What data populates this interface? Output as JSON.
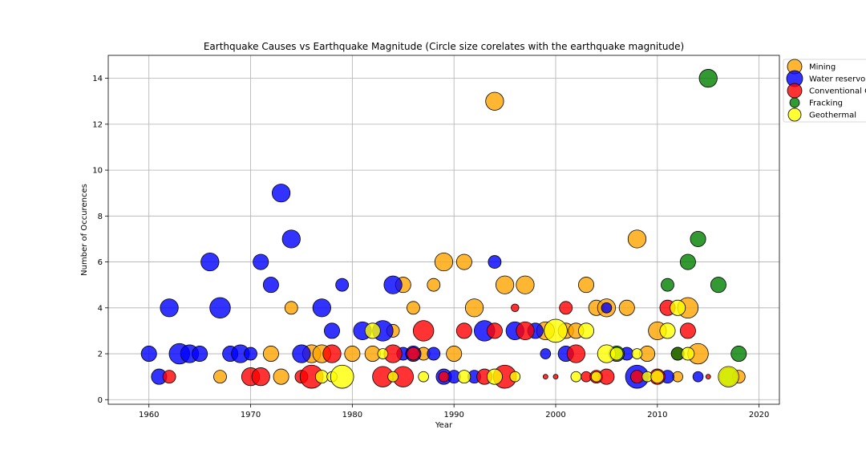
{
  "chart_data": {
    "type": "scatter",
    "title": "Earthquake Causes vs Earthquake Magnitude (Circle size corelates with the earthquake magnitude)",
    "xlabel": "Year",
    "ylabel": "Number of Occurences",
    "xlim": [
      1956,
      2022
    ],
    "ylim": [
      -0.2,
      15
    ],
    "xticks": [
      1960,
      1970,
      1980,
      1990,
      2000,
      2010,
      2020
    ],
    "yticks": [
      0,
      2,
      4,
      6,
      8,
      10,
      12,
      14
    ],
    "grid": true,
    "legend_position": "outside-right-top",
    "series": [
      {
        "name": "Mining",
        "color": "#FFA500",
        "points": [
          [
            1967,
            1,
            5
          ],
          [
            1972,
            2,
            5.5
          ],
          [
            1973,
            1,
            5.5
          ],
          [
            1974,
            4,
            5
          ],
          [
            1976,
            2,
            6
          ],
          [
            1977,
            2,
            6
          ],
          [
            1980,
            2,
            5.5
          ],
          [
            1982,
            2,
            5.5
          ],
          [
            1984,
            3,
            5
          ],
          [
            1985,
            5,
            5.5
          ],
          [
            1986,
            4,
            5
          ],
          [
            1987,
            2,
            5
          ],
          [
            1988,
            5,
            5
          ],
          [
            1989,
            6,
            6
          ],
          [
            1990,
            2,
            5.5
          ],
          [
            1991,
            6,
            5.5
          ],
          [
            1992,
            4,
            6
          ],
          [
            1994,
            13,
            6
          ],
          [
            1995,
            5,
            6
          ],
          [
            1997,
            5,
            6
          ],
          [
            1999,
            3,
            6
          ],
          [
            2001,
            3,
            5.5
          ],
          [
            2002,
            3,
            5.5
          ],
          [
            2003,
            5,
            5.5
          ],
          [
            2004,
            4,
            5.5
          ],
          [
            2005,
            4,
            6
          ],
          [
            2007,
            4,
            5.5
          ],
          [
            2008,
            7,
            6
          ],
          [
            2009,
            2,
            5.5
          ],
          [
            2010,
            3,
            6
          ],
          [
            2012,
            1,
            4.5
          ],
          [
            2013,
            4,
            6.5
          ],
          [
            2014,
            2,
            6.5
          ],
          [
            2018,
            1,
            5
          ]
        ]
      },
      {
        "name": "Water reservoir",
        "color": "#0000FF",
        "points": [
          [
            1960,
            2,
            5.5
          ],
          [
            1961,
            1,
            5.5
          ],
          [
            1962,
            4,
            6
          ],
          [
            1963,
            2,
            6.5
          ],
          [
            1964,
            2,
            6
          ],
          [
            1965,
            2,
            5.5
          ],
          [
            1966,
            6,
            6
          ],
          [
            1967,
            4,
            6.5
          ],
          [
            1968,
            2,
            5.5
          ],
          [
            1969,
            2,
            6
          ],
          [
            1970,
            2,
            5
          ],
          [
            1971,
            6,
            5.5
          ],
          [
            1972,
            5,
            5.5
          ],
          [
            1973,
            9,
            6
          ],
          [
            1974,
            7,
            6
          ],
          [
            1975,
            2,
            6
          ],
          [
            1977,
            4,
            6
          ],
          [
            1978,
            3,
            5.5
          ],
          [
            1979,
            5,
            5
          ],
          [
            1981,
            3,
            6
          ],
          [
            1983,
            3,
            6.5
          ],
          [
            1984,
            5,
            6
          ],
          [
            1985,
            2,
            5
          ],
          [
            1986,
            2,
            5.5
          ],
          [
            1988,
            2,
            5
          ],
          [
            1989,
            1,
            5.5
          ],
          [
            1990,
            1,
            5
          ],
          [
            1992,
            1,
            5
          ],
          [
            1993,
            3,
            6.5
          ],
          [
            1994,
            6,
            5
          ],
          [
            1996,
            3,
            6
          ],
          [
            1998,
            3,
            5.5
          ],
          [
            1999,
            2,
            4.5
          ],
          [
            2001,
            2,
            5.5
          ],
          [
            2005,
            4,
            4.5
          ],
          [
            2007,
            2,
            5
          ],
          [
            2008,
            1,
            7
          ],
          [
            2011,
            1,
            5
          ],
          [
            2014,
            1,
            4.5
          ]
        ]
      },
      {
        "name": "Conventional Oil and Gas",
        "color": "#FF0000",
        "points": [
          [
            1962,
            1,
            5
          ],
          [
            1970,
            1,
            6
          ],
          [
            1971,
            1,
            6
          ],
          [
            1975,
            1,
            5
          ],
          [
            1976,
            1,
            7
          ],
          [
            1978,
            2,
            6
          ],
          [
            1983,
            1,
            6.5
          ],
          [
            1984,
            2,
            6
          ],
          [
            1985,
            1,
            6.5
          ],
          [
            1986,
            2,
            5
          ],
          [
            1987,
            3,
            6.5
          ],
          [
            1989,
            1,
            4.5
          ],
          [
            1991,
            3,
            5.5
          ],
          [
            1993,
            1,
            5.5
          ],
          [
            1994,
            3,
            5.5
          ],
          [
            1995,
            1,
            7
          ],
          [
            1996,
            4,
            4
          ],
          [
            1997,
            3,
            6
          ],
          [
            1999,
            1,
            3
          ],
          [
            2000,
            1,
            3
          ],
          [
            2001,
            4,
            5
          ],
          [
            2002,
            2,
            6
          ],
          [
            2003,
            1,
            4.5
          ],
          [
            2004,
            1,
            5
          ],
          [
            2005,
            1,
            5.5
          ],
          [
            2008,
            1,
            5
          ],
          [
            2010,
            1,
            5.5
          ],
          [
            2011,
            4,
            5.5
          ],
          [
            2012,
            2,
            5
          ],
          [
            2013,
            3,
            5.5
          ],
          [
            2015,
            1,
            3
          ]
        ]
      },
      {
        "name": "Fracking",
        "color": "#008000",
        "points": [
          [
            2011,
            5,
            5
          ],
          [
            2013,
            6,
            5.5
          ],
          [
            2014,
            7,
            5.5
          ],
          [
            2015,
            14,
            6
          ],
          [
            2016,
            5,
            5.5
          ],
          [
            2018,
            2,
            5.5
          ],
          [
            2006,
            2,
            5.5
          ],
          [
            2012,
            2,
            5
          ],
          [
            2017,
            1,
            6
          ]
        ]
      },
      {
        "name": "Geothermal",
        "color": "#FFFF00",
        "points": [
          [
            1977,
            1,
            5
          ],
          [
            1978,
            1,
            4.5
          ],
          [
            1979,
            1,
            7
          ],
          [
            1982,
            3,
            5.5
          ],
          [
            1983,
            2,
            4.5
          ],
          [
            1984,
            1,
            4.5
          ],
          [
            1987,
            1,
            4.5
          ],
          [
            1991,
            1,
            5
          ],
          [
            1994,
            1,
            5.5
          ],
          [
            1996,
            1,
            4.5
          ],
          [
            2000,
            3,
            7
          ],
          [
            2002,
            1,
            4.5
          ],
          [
            2003,
            3,
            5.5
          ],
          [
            2004,
            1,
            4.5
          ],
          [
            2005,
            2,
            6
          ],
          [
            2006,
            2,
            5
          ],
          [
            2008,
            2,
            4.5
          ],
          [
            2009,
            1,
            4.5
          ],
          [
            2010,
            1,
            5
          ],
          [
            2011,
            3,
            5.5
          ],
          [
            2012,
            4,
            5.5
          ],
          [
            2013,
            2,
            5
          ],
          [
            2017,
            1,
            6.5
          ]
        ]
      }
    ]
  }
}
